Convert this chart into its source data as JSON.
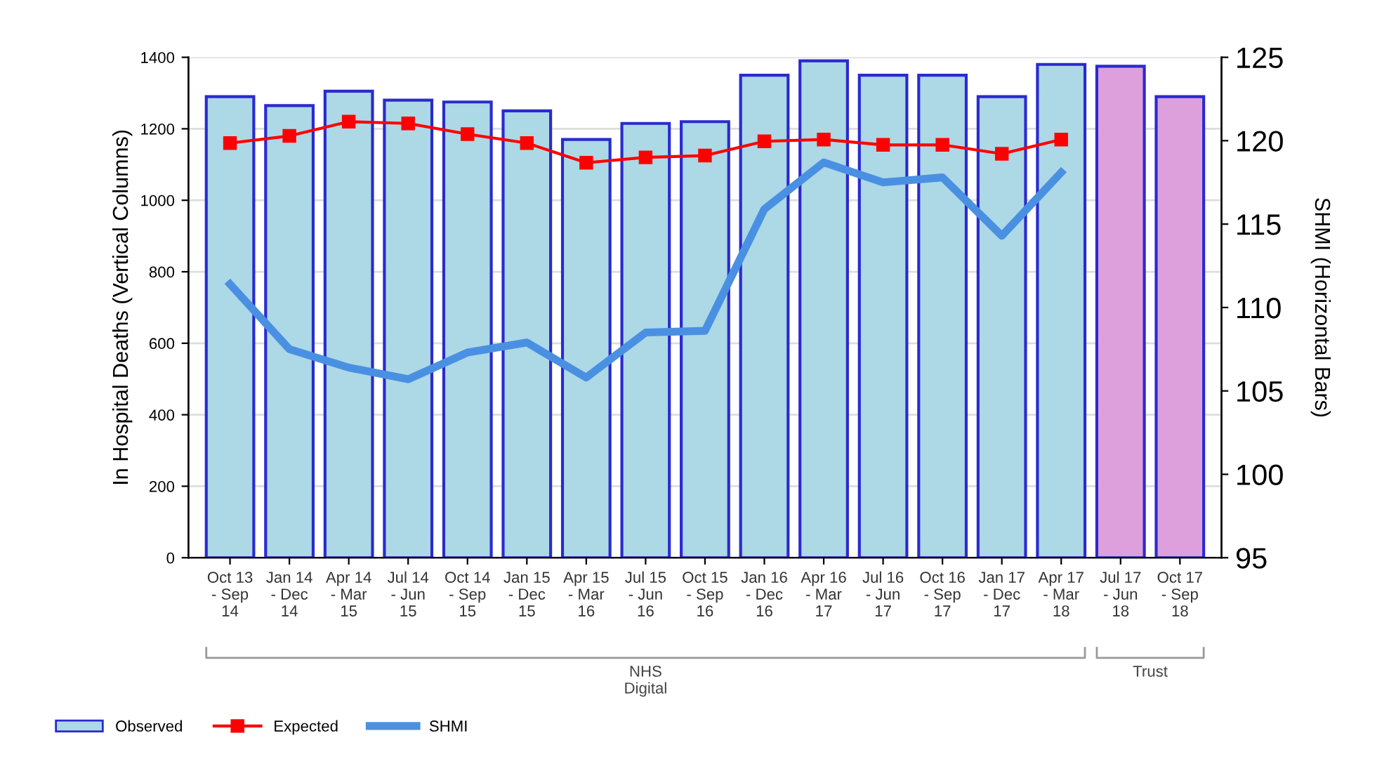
{
  "chart_data": {
    "type": "bar",
    "categories": [
      "Oct 13\n- Sep\n14",
      "Jan 14\n- Dec\n14",
      "Apr 14\n- Mar\n15",
      "Jul 14\n- Jun\n15",
      "Oct 14\n- Sep\n15",
      "Jan 15\n- Dec\n15",
      "Apr 15\n- Mar\n16",
      "Jul 15\n- Jun\n16",
      "Oct 15\n- Sep\n16",
      "Jan 16\n- Dec\n16",
      "Apr 16\n- Mar\n17",
      "Jul 16\n- Jun\n17",
      "Oct 16\n- Sep\n17",
      "Jan 17\n- Dec\n17",
      "Apr 17\n- Mar\n18",
      "Jul 17\n- Jun\n18",
      "Oct 17\n- Sep\n18"
    ],
    "series": [
      {
        "name": "Observed",
        "color": "#add8e6",
        "colors": [
          "#add8e6",
          "#add8e6",
          "#add8e6",
          "#add8e6",
          "#add8e6",
          "#add8e6",
          "#add8e6",
          "#add8e6",
          "#add8e6",
          "#add8e6",
          "#add8e6",
          "#add8e6",
          "#add8e6",
          "#add8e6",
          "#add8e6",
          "#dda0dd",
          "#dda0dd"
        ],
        "values": [
          1290,
          1265,
          1305,
          1280,
          1275,
          1250,
          1170,
          1215,
          1220,
          1350,
          1390,
          1350,
          1350,
          1290,
          1380,
          1375,
          1290
        ]
      },
      {
        "name": "Expected",
        "type": "line",
        "color": "#ff0000",
        "marker": "square",
        "values": [
          1160,
          1180,
          1220,
          1215,
          1185,
          1160,
          1105,
          1120,
          1125,
          1165,
          1170,
          1155,
          1155,
          1130,
          1170,
          null,
          null
        ]
      },
      {
        "name": "SHMI",
        "type": "line",
        "axis": "y2",
        "color": "#4a90e2",
        "marker": "none",
        "values": [
          111.4,
          107.5,
          106.4,
          105.7,
          107.3,
          107.9,
          105.8,
          108.5,
          108.6,
          115.9,
          118.7,
          117.5,
          117.8,
          114.3,
          118.1,
          null,
          null
        ]
      }
    ],
    "ylabel": "In Hospital Deaths (Vertical Columns)",
    "y2label": "SHMI (Horizontal Bars)",
    "ylim": [
      0,
      1400
    ],
    "yticks": [
      0,
      200,
      400,
      600,
      800,
      1000,
      1200,
      1400
    ],
    "y2lim": [
      95,
      125
    ],
    "y2ticks": [
      95,
      100,
      105,
      110,
      115,
      120,
      125
    ],
    "annotations": [
      "NHS\nDigital",
      "Trust"
    ],
    "grid": "y",
    "legend": "bottom left"
  }
}
